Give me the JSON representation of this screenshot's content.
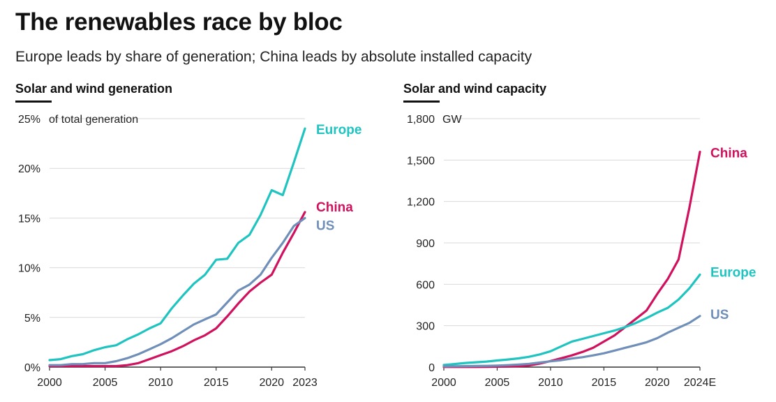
{
  "title": "The renewables race by bloc",
  "subtitle": "Europe leads by share of generation; China leads by absolute installed capacity",
  "colors": {
    "Europe": "#1fc4c0",
    "China": "#d0125e",
    "US": "#6f8fb9",
    "grid": "#d9d9d9",
    "axis": "#333333"
  },
  "chart_data": [
    {
      "type": "line",
      "panel_title": "Solar and wind generation",
      "unit_label": "of total generation",
      "ylim": [
        0,
        25
      ],
      "yticks": [
        0,
        5,
        10,
        15,
        20,
        25
      ],
      "ytick_labels": [
        "0%",
        "5%",
        "10%",
        "15%",
        "20%",
        "25%"
      ],
      "xlim": [
        2000,
        2023
      ],
      "xticks": [
        2000,
        2005,
        2010,
        2015,
        2020,
        2023
      ],
      "xtick_labels": [
        "2000",
        "2005",
        "2010",
        "2015",
        "2020",
        "2023"
      ],
      "grid": true,
      "x": [
        2000,
        2001,
        2002,
        2003,
        2004,
        2005,
        2006,
        2007,
        2008,
        2009,
        2010,
        2011,
        2012,
        2013,
        2014,
        2015,
        2016,
        2017,
        2018,
        2019,
        2020,
        2021,
        2022,
        2023
      ],
      "series": [
        {
          "name": "Europe",
          "values": [
            0.7,
            0.8,
            1.1,
            1.3,
            1.7,
            2.0,
            2.2,
            2.8,
            3.3,
            3.9,
            4.4,
            5.9,
            7.2,
            8.4,
            9.3,
            10.8,
            10.9,
            12.5,
            13.3,
            15.3,
            17.8,
            17.3,
            20.6,
            24.0
          ]
        },
        {
          "name": "China",
          "values": [
            0.1,
            0.1,
            0.1,
            0.1,
            0.1,
            0.1,
            0.1,
            0.2,
            0.4,
            0.8,
            1.2,
            1.6,
            2.1,
            2.7,
            3.2,
            3.9,
            5.1,
            6.4,
            7.6,
            8.5,
            9.3,
            11.5,
            13.5,
            15.6
          ]
        },
        {
          "name": "US",
          "values": [
            0.2,
            0.2,
            0.3,
            0.3,
            0.4,
            0.4,
            0.6,
            0.9,
            1.3,
            1.8,
            2.3,
            2.9,
            3.6,
            4.3,
            4.8,
            5.3,
            6.5,
            7.7,
            8.3,
            9.3,
            11.0,
            12.5,
            14.2,
            15.0
          ]
        }
      ]
    },
    {
      "type": "line",
      "panel_title": "Solar and wind capacity",
      "unit_label": "GW",
      "ylim": [
        0,
        1800
      ],
      "yticks": [
        0,
        300,
        600,
        900,
        1200,
        1500,
        1800
      ],
      "ytick_labels": [
        "0",
        "300",
        "600",
        "900",
        "1,200",
        "1,500",
        "1,800"
      ],
      "xlim": [
        2000,
        2024
      ],
      "xticks": [
        2000,
        2005,
        2010,
        2015,
        2020,
        2024
      ],
      "xtick_labels": [
        "2000",
        "2005",
        "2010",
        "2015",
        "2020",
        "2024E"
      ],
      "grid": true,
      "x": [
        2000,
        2001,
        2002,
        2003,
        2004,
        2005,
        2006,
        2007,
        2008,
        2009,
        2010,
        2011,
        2012,
        2013,
        2014,
        2015,
        2016,
        2017,
        2018,
        2019,
        2020,
        2021,
        2022,
        2023,
        2024
      ],
      "series": [
        {
          "name": "China",
          "values": [
            1,
            1,
            1,
            1,
            2,
            3,
            4,
            6,
            12,
            26,
            44,
            64,
            85,
            110,
            140,
            185,
            230,
            290,
            350,
            410,
            530,
            640,
            780,
            1150,
            1560
          ]
        },
        {
          "name": "Europe",
          "values": [
            15,
            22,
            30,
            35,
            40,
            48,
            55,
            63,
            75,
            92,
            115,
            150,
            185,
            205,
            225,
            245,
            265,
            290,
            320,
            355,
            395,
            430,
            490,
            570,
            670
          ]
        },
        {
          "name": "US",
          "values": [
            5,
            6,
            7,
            8,
            9,
            11,
            14,
            18,
            24,
            33,
            42,
            50,
            62,
            72,
            85,
            100,
            120,
            140,
            160,
            180,
            210,
            250,
            285,
            320,
            370
          ]
        }
      ]
    }
  ]
}
